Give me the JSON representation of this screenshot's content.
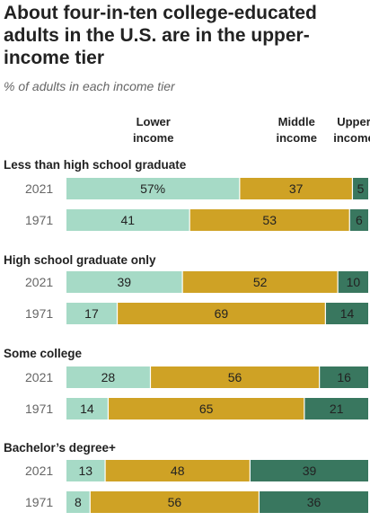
{
  "chart_data": {
    "type": "bar",
    "orientation": "horizontal",
    "stacked": true,
    "title": "About four-in-ten college-educated adults in the U.S. are in the upper-income tier",
    "subtitle": "% of adults in each income tier",
    "legend_placement": "top",
    "grid": false,
    "series": [
      {
        "name": "Lower income",
        "header_lines": [
          "Lower",
          "income"
        ],
        "color": "#a6dac6"
      },
      {
        "name": "Middle income",
        "header_lines": [
          "Middle",
          "income"
        ],
        "color": "#cfa225"
      },
      {
        "name": "Upper income",
        "header_lines": [
          "Upper",
          "income"
        ],
        "color": "#39775f"
      }
    ],
    "groups": [
      {
        "name": "Less than high school graduate",
        "rows": [
          {
            "year": "2021",
            "values": [
              57,
              37,
              5
            ],
            "labels": [
              "57%",
              "37",
              "5"
            ]
          },
          {
            "year": "1971",
            "values": [
              41,
              53,
              6
            ],
            "labels": [
              "41",
              "53",
              "6"
            ]
          }
        ]
      },
      {
        "name": "High school graduate only",
        "rows": [
          {
            "year": "2021",
            "values": [
              39,
              52,
              10
            ],
            "labels": [
              "39",
              "52",
              "10"
            ]
          },
          {
            "year": "1971",
            "values": [
              17,
              69,
              14
            ],
            "labels": [
              "17",
              "69",
              "14"
            ]
          }
        ]
      },
      {
        "name": "Some college",
        "rows": [
          {
            "year": "2021",
            "values": [
              28,
              56,
              16
            ],
            "labels": [
              "28",
              "56",
              "16"
            ]
          },
          {
            "year": "1971",
            "values": [
              14,
              65,
              21
            ],
            "labels": [
              "14",
              "65",
              "21"
            ]
          }
        ]
      },
      {
        "name": "Bachelor’s degree+",
        "rows": [
          {
            "year": "2021",
            "values": [
              13,
              48,
              39
            ],
            "labels": [
              "13",
              "48",
              "39"
            ]
          },
          {
            "year": "1971",
            "values": [
              8,
              56,
              36
            ],
            "labels": [
              "8",
              "56",
              "36"
            ]
          }
        ]
      }
    ]
  }
}
